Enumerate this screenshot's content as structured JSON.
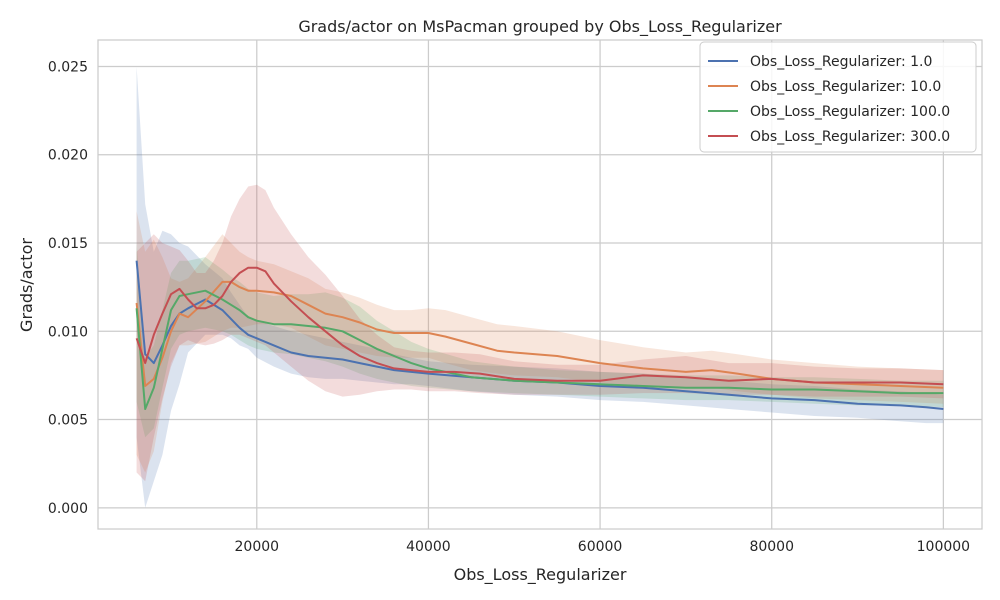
{
  "chart_data": {
    "type": "line",
    "title": "Grads/actor on MsPacman grouped by Obs_Loss_Regularizer",
    "xlabel": "Obs_Loss_Regularizer",
    "ylabel": "Grads/actor",
    "xlim": [
      1500,
      104500
    ],
    "ylim": [
      -0.0012,
      0.0265
    ],
    "xticks": [
      20000,
      40000,
      60000,
      80000,
      100000
    ],
    "xtick_labels": [
      "20000",
      "40000",
      "60000",
      "80000",
      "100000"
    ],
    "yticks": [
      0.0,
      0.005,
      0.01,
      0.015,
      0.02,
      0.025
    ],
    "ytick_labels": [
      "0.000",
      "0.005",
      "0.010",
      "0.015",
      "0.020",
      "0.025"
    ],
    "grid": true,
    "legend_position": "top-right",
    "series": [
      {
        "name": "Obs_Loss_Regularizer: 1.0",
        "color": "#4c72b0",
        "x": [
          6000,
          7000,
          8000,
          9000,
          10000,
          11000,
          12000,
          14000,
          16000,
          17000,
          18000,
          19000,
          20000,
          22000,
          24000,
          26000,
          28000,
          30000,
          32000,
          34000,
          36000,
          38000,
          40000,
          45000,
          50000,
          55000,
          60000,
          65000,
          70000,
          75000,
          80000,
          85000,
          90000,
          95000,
          98000,
          100000
        ],
        "y": [
          0.014,
          0.0087,
          0.0082,
          0.0092,
          0.0103,
          0.011,
          0.0113,
          0.0118,
          0.0112,
          0.0107,
          0.0102,
          0.0098,
          0.0096,
          0.0092,
          0.0088,
          0.0086,
          0.0085,
          0.0084,
          0.0082,
          0.008,
          0.0078,
          0.0077,
          0.0076,
          0.0074,
          0.0072,
          0.0071,
          0.0069,
          0.0068,
          0.0066,
          0.0064,
          0.0062,
          0.0061,
          0.0059,
          0.0058,
          0.0057,
          0.0056
        ],
        "lower": [
          0.004,
          0.0,
          0.0015,
          0.003,
          0.0055,
          0.007,
          0.0088,
          0.0098,
          0.0098,
          0.0096,
          0.0092,
          0.009,
          0.0085,
          0.008,
          0.0076,
          0.0074,
          0.0073,
          0.0073,
          0.0072,
          0.0071,
          0.007,
          0.007,
          0.0069,
          0.0066,
          0.0064,
          0.0063,
          0.0061,
          0.006,
          0.0058,
          0.0056,
          0.0054,
          0.0052,
          0.0051,
          0.0049,
          0.0048,
          0.0048
        ],
        "upper": [
          0.025,
          0.0172,
          0.0145,
          0.0157,
          0.0155,
          0.015,
          0.0148,
          0.0138,
          0.013,
          0.0122,
          0.0115,
          0.0108,
          0.0106,
          0.0103,
          0.01,
          0.0098,
          0.0096,
          0.0094,
          0.0092,
          0.009,
          0.0087,
          0.0085,
          0.0083,
          0.0081,
          0.008,
          0.0079,
          0.0077,
          0.0076,
          0.0074,
          0.0072,
          0.007,
          0.0069,
          0.0067,
          0.0066,
          0.0065,
          0.0064
        ]
      },
      {
        "name": "Obs_Loss_Regularizer: 10.0",
        "color": "#dd8452",
        "x": [
          6000,
          7000,
          8000,
          9000,
          10000,
          11000,
          12000,
          14000,
          16000,
          17000,
          18000,
          19000,
          20000,
          22000,
          24000,
          26000,
          28000,
          30000,
          32000,
          34000,
          36000,
          38000,
          40000,
          42000,
          45000,
          48000,
          50000,
          55000,
          60000,
          65000,
          70000,
          73000,
          76000,
          80000,
          85000,
          90000,
          95000,
          100000
        ],
        "y": [
          0.0116,
          0.0069,
          0.0073,
          0.0085,
          0.01,
          0.011,
          0.0108,
          0.0117,
          0.0128,
          0.0128,
          0.0125,
          0.0123,
          0.0123,
          0.0122,
          0.012,
          0.0115,
          0.011,
          0.0108,
          0.0105,
          0.0101,
          0.0099,
          0.0099,
          0.0099,
          0.0097,
          0.0093,
          0.0089,
          0.0088,
          0.0086,
          0.0082,
          0.0079,
          0.0077,
          0.0078,
          0.0076,
          0.0073,
          0.0071,
          0.007,
          0.0069,
          0.0068
        ],
        "lower": [
          0.003,
          0.002,
          0.0032,
          0.006,
          0.0082,
          0.0092,
          0.0092,
          0.0094,
          0.01,
          0.0102,
          0.0102,
          0.0103,
          0.0104,
          0.0104,
          0.0102,
          0.0097,
          0.0092,
          0.009,
          0.0088,
          0.0086,
          0.0085,
          0.0085,
          0.0085,
          0.0082,
          0.0078,
          0.0076,
          0.0075,
          0.0074,
          0.0071,
          0.0069,
          0.0068,
          0.0068,
          0.0066,
          0.0064,
          0.0062,
          0.0061,
          0.006,
          0.0059
        ],
        "upper": [
          0.0168,
          0.0145,
          0.0152,
          0.0142,
          0.013,
          0.0128,
          0.013,
          0.0142,
          0.0155,
          0.015,
          0.0145,
          0.0142,
          0.014,
          0.0138,
          0.0134,
          0.013,
          0.0124,
          0.0122,
          0.0119,
          0.0115,
          0.0112,
          0.0112,
          0.0113,
          0.0112,
          0.0108,
          0.0104,
          0.0103,
          0.01,
          0.0095,
          0.0091,
          0.0088,
          0.0089,
          0.0087,
          0.0084,
          0.0082,
          0.008,
          0.0079,
          0.0078
        ]
      },
      {
        "name": "Obs_Loss_Regularizer: 100.0",
        "color": "#55a868",
        "x": [
          6000,
          7000,
          8000,
          9000,
          10000,
          11000,
          12000,
          14000,
          16000,
          17000,
          18000,
          19000,
          20000,
          22000,
          24000,
          26000,
          28000,
          30000,
          32000,
          34000,
          36000,
          38000,
          40000,
          45000,
          50000,
          55000,
          60000,
          65000,
          70000,
          75000,
          80000,
          85000,
          90000,
          95000,
          100000
        ],
        "y": [
          0.0113,
          0.0056,
          0.0068,
          0.009,
          0.0112,
          0.012,
          0.0121,
          0.0123,
          0.0118,
          0.0115,
          0.0112,
          0.0108,
          0.0106,
          0.0104,
          0.0104,
          0.0103,
          0.0102,
          0.01,
          0.0095,
          0.009,
          0.0086,
          0.0082,
          0.0079,
          0.0074,
          0.0072,
          0.0071,
          0.007,
          0.0069,
          0.0068,
          0.0068,
          0.0067,
          0.0067,
          0.0066,
          0.0065,
          0.0065
        ],
        "lower": [
          0.006,
          0.004,
          0.0045,
          0.0068,
          0.009,
          0.0098,
          0.01,
          0.0102,
          0.01,
          0.0098,
          0.0095,
          0.0092,
          0.009,
          0.0088,
          0.0087,
          0.0085,
          0.0083,
          0.008,
          0.0076,
          0.0073,
          0.0071,
          0.0069,
          0.0068,
          0.0066,
          0.0065,
          0.0064,
          0.0063,
          0.0062,
          0.0061,
          0.0061,
          0.006,
          0.0059,
          0.0058,
          0.0058,
          0.0057
        ],
        "upper": [
          0.015,
          0.0085,
          0.0092,
          0.0112,
          0.0133,
          0.014,
          0.014,
          0.0142,
          0.0135,
          0.0131,
          0.0128,
          0.0124,
          0.0122,
          0.012,
          0.0121,
          0.0121,
          0.0122,
          0.0119,
          0.0114,
          0.0106,
          0.01,
          0.0094,
          0.009,
          0.0083,
          0.008,
          0.0078,
          0.0077,
          0.0076,
          0.0075,
          0.0075,
          0.0074,
          0.0074,
          0.0073,
          0.0072,
          0.0072
        ]
      },
      {
        "name": "Obs_Loss_Regularizer: 300.0",
        "color": "#c44e52",
        "x": [
          6000,
          7000,
          8000,
          9000,
          10000,
          11000,
          12000,
          13000,
          14000,
          15000,
          16000,
          17000,
          18000,
          19000,
          20000,
          21000,
          22000,
          24000,
          26000,
          28000,
          30000,
          32000,
          34000,
          36000,
          38000,
          40000,
          43000,
          46000,
          50000,
          55000,
          60000,
          65000,
          70000,
          75000,
          80000,
          85000,
          90000,
          95000,
          100000
        ],
        "y": [
          0.0096,
          0.0082,
          0.0098,
          0.011,
          0.0121,
          0.0124,
          0.0118,
          0.0113,
          0.0113,
          0.0115,
          0.012,
          0.0128,
          0.0133,
          0.0136,
          0.0136,
          0.0134,
          0.0127,
          0.0117,
          0.0108,
          0.01,
          0.0092,
          0.0086,
          0.0082,
          0.0079,
          0.0078,
          0.0077,
          0.0077,
          0.0076,
          0.0073,
          0.0072,
          0.0072,
          0.0075,
          0.0074,
          0.0072,
          0.0073,
          0.0071,
          0.0071,
          0.0071,
          0.007
        ],
        "lower": [
          0.002,
          0.0015,
          0.004,
          0.0062,
          0.008,
          0.0092,
          0.0095,
          0.0093,
          0.0092,
          0.0093,
          0.0095,
          0.0098,
          0.0098,
          0.0096,
          0.0094,
          0.0092,
          0.0088,
          0.008,
          0.0072,
          0.0066,
          0.0063,
          0.0064,
          0.0066,
          0.0067,
          0.0067,
          0.0066,
          0.0066,
          0.0065,
          0.0064,
          0.0064,
          0.0064,
          0.0065,
          0.0065,
          0.0064,
          0.0064,
          0.0063,
          0.0063,
          0.0063,
          0.0062
        ],
        "upper": [
          0.0145,
          0.015,
          0.0155,
          0.015,
          0.0148,
          0.0146,
          0.014,
          0.0133,
          0.0133,
          0.014,
          0.015,
          0.0165,
          0.0175,
          0.0182,
          0.0183,
          0.018,
          0.017,
          0.0155,
          0.0142,
          0.0132,
          0.012,
          0.0107,
          0.0098,
          0.0091,
          0.0089,
          0.0088,
          0.0088,
          0.0087,
          0.0083,
          0.0081,
          0.0081,
          0.0084,
          0.0086,
          0.0082,
          0.0082,
          0.008,
          0.0079,
          0.0079,
          0.0078
        ]
      }
    ]
  }
}
